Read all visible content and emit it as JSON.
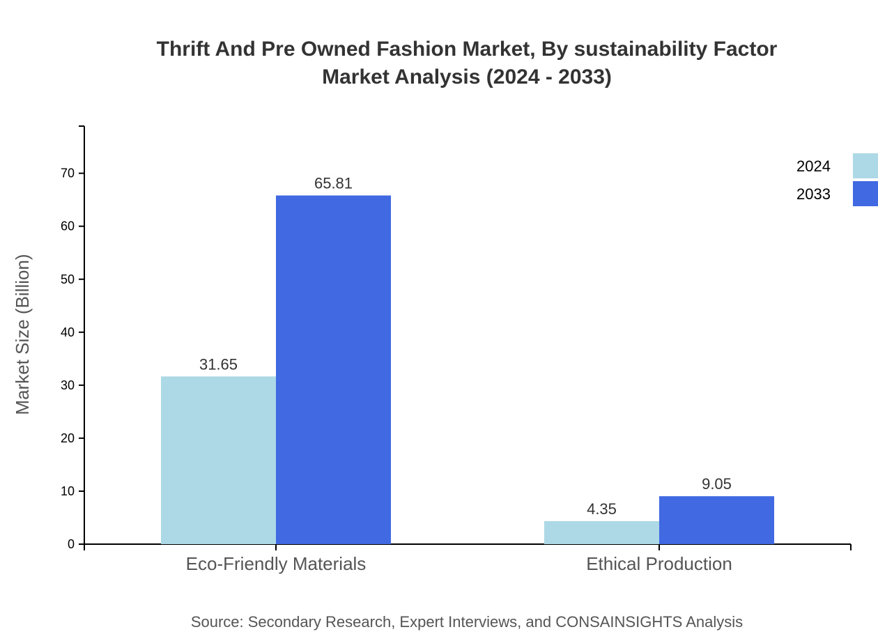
{
  "chart_data": {
    "type": "bar",
    "title": "Thrift And Pre Owned Fashion Market, By sustainability Factor",
    "subtitle": "Market Analysis (2024 - 2033)",
    "xlabel": "",
    "ylabel": "Market Size (Billion)",
    "categories": [
      "Eco-Friendly Materials",
      "Ethical Production"
    ],
    "series": [
      {
        "name": "2024",
        "values": [
          31.65,
          4.35
        ],
        "color": "#add8e6"
      },
      {
        "name": "2033",
        "values": [
          65.81,
          9.05
        ],
        "color": "#4169e1"
      }
    ],
    "ylim": [
      0,
      78.9
    ],
    "yticks": [
      0,
      10,
      20,
      30,
      40,
      50,
      60,
      70
    ],
    "grid": false,
    "legend": "top-right",
    "source": "Source: Secondary Research, Expert Interviews, and CONSAINSIGHTS Analysis"
  }
}
